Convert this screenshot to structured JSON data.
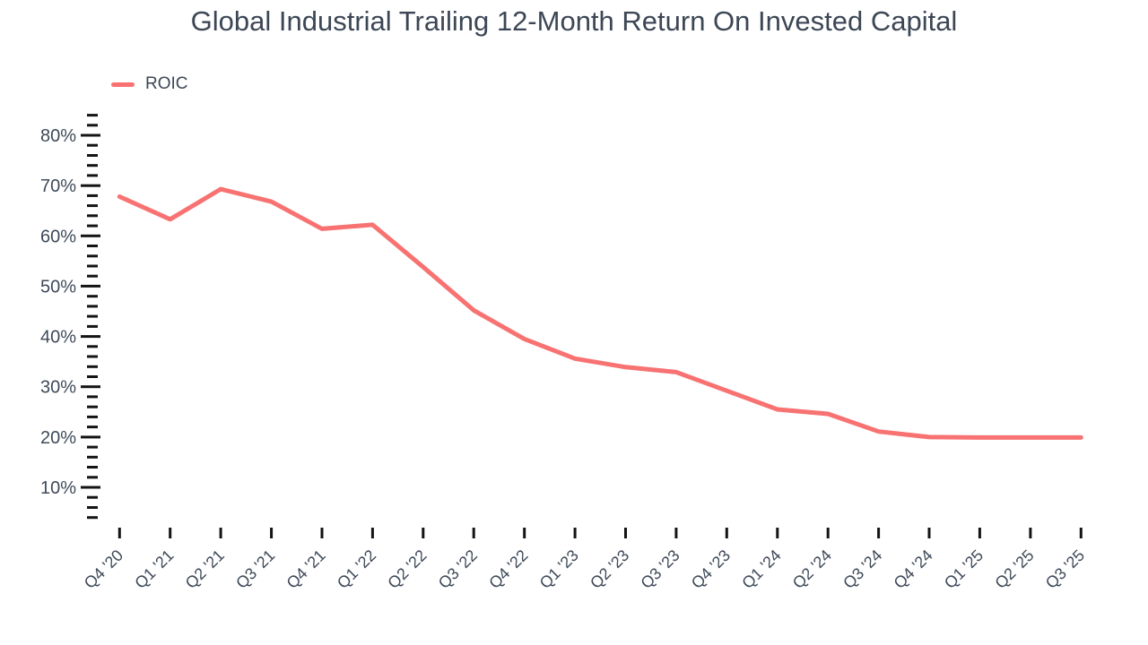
{
  "page": {
    "background": "#ffffff"
  },
  "header": {
    "title": "Global Industrial Trailing 12-Month Return On Invested Capital"
  },
  "legend": {
    "items": [
      {
        "label": "ROIC",
        "color": "#F87272"
      }
    ]
  },
  "chart_data": {
    "type": "line",
    "title": "Global Industrial Trailing 12-Month Return On Invested Capital",
    "xlabel": "",
    "ylabel": "",
    "unit": "%",
    "categories": [
      "Q4 '20",
      "Q1 '21",
      "Q2 '21",
      "Q3 '21",
      "Q4 '21",
      "Q1 '22",
      "Q2 '22",
      "Q3 '22",
      "Q4 '22",
      "Q1 '23",
      "Q2 '23",
      "Q3 '23",
      "Q4 '23",
      "Q1 '24",
      "Q2 '24",
      "Q3 '24",
      "Q4 '24",
      "Q1 '25",
      "Q2 '25",
      "Q3 '25"
    ],
    "series": [
      {
        "name": "ROIC",
        "color": "#F87272",
        "values": [
          67.8,
          63.3,
          69.3,
          66.8,
          61.4,
          62.2,
          53.8,
          45.2,
          39.5,
          35.6,
          33.9,
          32.9,
          29.2,
          25.5,
          24.6,
          21.1,
          20.0,
          19.9,
          19.9,
          19.9
        ]
      }
    ],
    "ylim": [
      4,
      84
    ],
    "y_minor_tick_step": 2,
    "y_ticks": [
      {
        "value": 10,
        "label": "10%"
      },
      {
        "value": 20,
        "label": "20%"
      },
      {
        "value": 30,
        "label": "30%"
      },
      {
        "value": 40,
        "label": "40%"
      },
      {
        "value": 50,
        "label": "50%"
      },
      {
        "value": 60,
        "label": "60%"
      },
      {
        "value": 70,
        "label": "70%"
      },
      {
        "value": 80,
        "label": "80%"
      }
    ],
    "grid": false,
    "legend_position": "top-left",
    "colors": {
      "line": "#F87272",
      "tick": "#141414",
      "text": "#3F4A59",
      "title": "#3C4655"
    }
  }
}
